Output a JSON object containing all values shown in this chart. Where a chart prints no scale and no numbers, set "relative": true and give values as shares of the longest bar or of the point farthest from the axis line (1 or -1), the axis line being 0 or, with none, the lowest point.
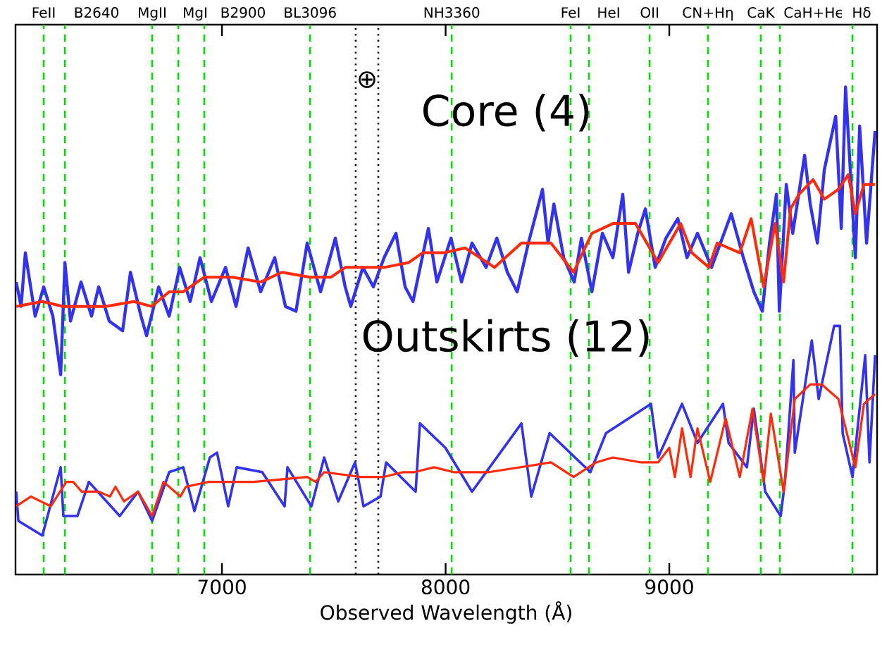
{
  "chart_data": {
    "type": "line",
    "relative": true,
    "xlabel": "Observed Wavelength (Å)",
    "xlim": [
      6077,
      9929
    ],
    "xticks": [
      7000,
      8000,
      9000
    ],
    "series": [
      {
        "color": "#3333ee",
        "x": [
          6080,
          6102,
          6121,
          6165,
          6203,
          6244,
          6279,
          6298,
          6323,
          6370,
          6417,
          6449,
          6496,
          6556,
          6591,
          6638,
          6663,
          6717,
          6764,
          6811,
          6858,
          6902,
          6953,
          7016,
          7063,
          7117,
          7173,
          7236,
          7284,
          7331,
          7381,
          7441,
          7507,
          7551,
          7576,
          7630,
          7677,
          7725,
          7778,
          7819,
          7854,
          7923,
          7961,
          8024,
          8071,
          8118,
          8181,
          8229,
          8276,
          8320,
          8370,
          8433,
          8458,
          8484,
          8528,
          8575,
          8607,
          8654,
          8701,
          8748,
          8792,
          8818,
          8859,
          8893,
          8937,
          8985,
          9038,
          9079,
          9126,
          9189,
          9237,
          9277,
          9331,
          9378,
          9416,
          9448,
          9479,
          9492,
          9523,
          9552,
          9605,
          9630,
          9662,
          9693,
          9744,
          9769,
          9788,
          9813,
          9832,
          9851,
          9882,
          9920
        ],
        "values": [
          0.6,
          0.55,
          0.66,
          0.53,
          0.59,
          0.53,
          0.41,
          0.64,
          0.52,
          0.6,
          0.53,
          0.59,
          0.52,
          0.5,
          0.62,
          0.53,
          0.49,
          0.59,
          0.53,
          0.63,
          0.56,
          0.65,
          0.56,
          0.63,
          0.55,
          0.67,
          0.58,
          0.65,
          0.55,
          0.54,
          0.68,
          0.58,
          0.69,
          0.59,
          0.55,
          0.63,
          0.59,
          0.65,
          0.7,
          0.59,
          0.56,
          0.71,
          0.6,
          0.69,
          0.6,
          0.68,
          0.63,
          0.69,
          0.62,
          0.58,
          0.68,
          0.79,
          0.68,
          0.76,
          0.65,
          0.6,
          0.69,
          0.58,
          0.7,
          0.65,
          0.78,
          0.62,
          0.7,
          0.75,
          0.63,
          0.69,
          0.73,
          0.65,
          0.7,
          0.63,
          0.69,
          0.74,
          0.65,
          0.58,
          0.54,
          0.68,
          0.78,
          0.54,
          0.8,
          0.7,
          0.86,
          0.76,
          0.68,
          0.83,
          0.94,
          0.71,
          1.0,
          0.8,
          0.65,
          0.92,
          0.68,
          0.91
        ]
      },
      {
        "color": "#ff2a0a",
        "x": [
          6080,
          6197,
          6291,
          6480,
          6606,
          6685,
          6764,
          6827,
          6921,
          7047,
          7173,
          7268,
          7394,
          7488,
          7551,
          7646,
          7725,
          7835,
          7898,
          7992,
          8087,
          8219,
          8339,
          8471,
          8572,
          8654,
          8748,
          8849,
          8950,
          9051,
          9101,
          9177,
          9214,
          9315,
          9366,
          9422,
          9473,
          9511,
          9542,
          9580,
          9643,
          9693,
          9756,
          9800,
          9832,
          9870,
          9920
        ],
        "values": [
          0.55,
          0.56,
          0.55,
          0.55,
          0.56,
          0.55,
          0.58,
          0.58,
          0.61,
          0.61,
          0.6,
          0.62,
          0.61,
          0.61,
          0.63,
          0.63,
          0.63,
          0.64,
          0.66,
          0.66,
          0.67,
          0.63,
          0.68,
          0.68,
          0.62,
          0.7,
          0.72,
          0.72,
          0.64,
          0.72,
          0.66,
          0.63,
          0.68,
          0.66,
          0.73,
          0.59,
          0.72,
          0.6,
          0.75,
          0.78,
          0.81,
          0.77,
          0.79,
          0.82,
          0.74,
          0.8,
          0.8
        ]
      },
      {
        "color": "#3333ee",
        "x": [
          6080,
          6090,
          6197,
          6279,
          6291,
          6354,
          6405,
          6543,
          6625,
          6688,
          6764,
          6827,
          6877,
          6946,
          6978,
          7028,
          7066,
          7180,
          7280,
          7293,
          7400,
          7457,
          7520,
          7595,
          7633,
          7709,
          7734,
          7866,
          7885,
          7999,
          8118,
          8339,
          8383,
          8465,
          8647,
          8717,
          8918,
          8950,
          9057,
          9126,
          9240,
          9265,
          9347,
          9378,
          9429,
          9498,
          9517,
          9555,
          9561,
          9637,
          9668,
          9737,
          9763,
          9775,
          9819,
          9876,
          9895,
          9920
        ],
        "values": [
          0.17,
          0.11,
          0.08,
          0.22,
          0.12,
          0.12,
          0.19,
          0.12,
          0.17,
          0.11,
          0.21,
          0.22,
          0.13,
          0.24,
          0.25,
          0.14,
          0.22,
          0.21,
          0.14,
          0.22,
          0.14,
          0.24,
          0.15,
          0.23,
          0.14,
          0.16,
          0.23,
          0.17,
          0.31,
          0.26,
          0.17,
          0.31,
          0.16,
          0.29,
          0.21,
          0.29,
          0.35,
          0.24,
          0.35,
          0.27,
          0.35,
          0.27,
          0.22,
          0.34,
          0.17,
          0.12,
          0.19,
          0.44,
          0.25,
          0.48,
          0.36,
          0.51,
          0.51,
          0.29,
          0.2,
          0.45,
          0.23,
          0.45
        ]
      },
      {
        "color": "#ff2a0a",
        "x": [
          6080,
          6146,
          6235,
          6304,
          6335,
          6373,
          6449,
          6499,
          6524,
          6562,
          6625,
          6688,
          6739,
          6814,
          6839,
          6940,
          7142,
          7381,
          7419,
          7457,
          7621,
          7721,
          7810,
          7860,
          7948,
          8036,
          8194,
          8471,
          8572,
          8673,
          8748,
          8874,
          8950,
          9000,
          9025,
          9057,
          9095,
          9126,
          9183,
          9252,
          9315,
          9372,
          9422,
          9454,
          9511,
          9561,
          9630,
          9681,
          9756,
          9832,
          9870,
          9920
        ],
        "values": [
          0.14,
          0.16,
          0.14,
          0.19,
          0.19,
          0.17,
          0.17,
          0.16,
          0.18,
          0.15,
          0.17,
          0.12,
          0.19,
          0.16,
          0.18,
          0.19,
          0.19,
          0.2,
          0.19,
          0.21,
          0.2,
          0.2,
          0.21,
          0.21,
          0.22,
          0.21,
          0.21,
          0.23,
          0.2,
          0.23,
          0.24,
          0.23,
          0.23,
          0.26,
          0.2,
          0.3,
          0.2,
          0.3,
          0.19,
          0.32,
          0.2,
          0.34,
          0.19,
          0.33,
          0.17,
          0.36,
          0.39,
          0.39,
          0.36,
          0.22,
          0.35,
          0.37
        ]
      }
    ],
    "ref_lines": [
      {
        "axis": "x",
        "value": 6203,
        "label": "FeII",
        "color": "#00e000",
        "line_style": "dashed"
      },
      {
        "axis": "x",
        "value": 6298,
        "label": "B2640",
        "color": "#00e000",
        "line_style": "dashed"
      },
      {
        "axis": "x",
        "value": 6688,
        "label": "MgII",
        "color": "#00e000",
        "line_style": "dashed"
      },
      {
        "axis": "x",
        "value": 6805,
        "label": "MgI",
        "color": "#00e000",
        "line_style": "dashed"
      },
      {
        "axis": "x",
        "value": 6921,
        "label": "B2900",
        "color": "#00e000",
        "line_style": "dashed"
      },
      {
        "axis": "x",
        "value": 7394,
        "label": "BL3096",
        "color": "#00e000",
        "line_style": "dashed"
      },
      {
        "axis": "x",
        "value": 7598,
        "color": "#000000",
        "line_style": "dotted"
      },
      {
        "axis": "x",
        "value": 7699,
        "color": "#000000",
        "line_style": "dotted"
      },
      {
        "axis": "x",
        "value": 8027,
        "label": "NH3360",
        "color": "#00e000",
        "line_style": "dashed"
      },
      {
        "axis": "x",
        "value": 8559,
        "label": "FeI",
        "color": "#00e000",
        "line_style": "dashed"
      },
      {
        "axis": "x",
        "value": 8641,
        "label": "HeI",
        "color": "#00e000",
        "line_style": "dashed"
      },
      {
        "axis": "x",
        "value": 8912,
        "label": "OII",
        "color": "#00e000",
        "line_style": "dashed"
      },
      {
        "axis": "x",
        "value": 9173,
        "label": "CN+Hη",
        "color": "#00e000",
        "line_style": "dashed"
      },
      {
        "axis": "x",
        "value": 9409,
        "label": "CaK",
        "color": "#00e000",
        "line_style": "dashed"
      },
      {
        "axis": "x",
        "value": 9494,
        "label": "CaH+Hϵ",
        "color": "#00e000",
        "line_style": "dashed"
      },
      {
        "axis": "x",
        "value": 9819,
        "label": "Hδ",
        "color": "#00e000",
        "line_style": "dashed"
      }
    ],
    "annotations": [
      "⊕",
      "Core (4)",
      "Outskirts (12)"
    ]
  }
}
